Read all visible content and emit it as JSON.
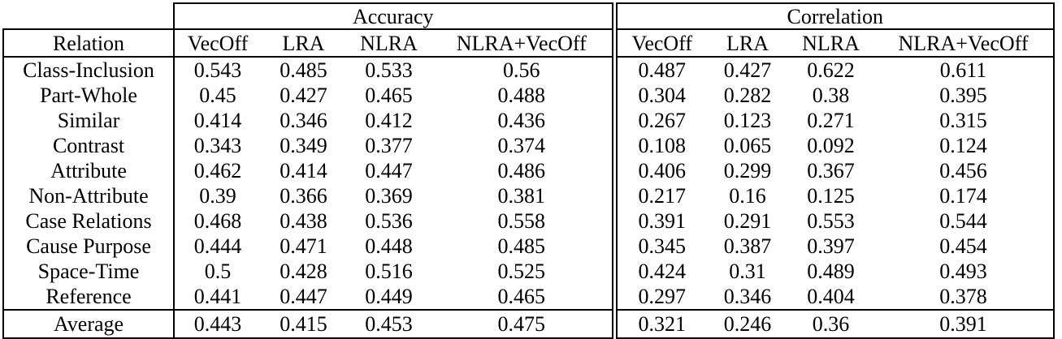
{
  "table": {
    "group_headers": [
      "Accuracy",
      "Correlation"
    ],
    "relation_header": "Relation",
    "column_headers": [
      "VecOff",
      "LRA",
      "NLRA",
      "NLRA+VecOff"
    ],
    "text_color": "#000000",
    "background_color": "#ffffff",
    "rows": [
      {
        "relation": "Class-Inclusion",
        "accuracy": [
          "0.543",
          "0.485",
          "0.533",
          "0.56"
        ],
        "accuracy_bold": [
          false,
          false,
          false,
          true
        ],
        "correlation": [
          "0.487",
          "0.427",
          "0.622",
          "0.611"
        ],
        "correlation_bold": [
          false,
          false,
          true,
          false
        ]
      },
      {
        "relation": "Part-Whole",
        "accuracy": [
          "0.45",
          "0.427",
          "0.465",
          "0.488"
        ],
        "accuracy_bold": [
          false,
          false,
          false,
          true
        ],
        "correlation": [
          "0.304",
          "0.282",
          "0.38",
          "0.395"
        ],
        "correlation_bold": [
          false,
          false,
          false,
          true
        ]
      },
      {
        "relation": "Similar",
        "accuracy": [
          "0.414",
          "0.346",
          "0.412",
          "0.436"
        ],
        "accuracy_bold": [
          false,
          false,
          false,
          true
        ],
        "correlation": [
          "0.267",
          "0.123",
          "0.271",
          "0.315"
        ],
        "correlation_bold": [
          false,
          false,
          false,
          true
        ]
      },
      {
        "relation": "Contrast",
        "accuracy": [
          "0.343",
          "0.349",
          "0.377",
          "0.374"
        ],
        "accuracy_bold": [
          false,
          false,
          true,
          false
        ],
        "correlation": [
          "0.108",
          "0.065",
          "0.092",
          "0.124"
        ],
        "correlation_bold": [
          false,
          false,
          false,
          true
        ]
      },
      {
        "relation": "Attribute",
        "accuracy": [
          "0.462",
          "0.414",
          "0.447",
          "0.486"
        ],
        "accuracy_bold": [
          false,
          false,
          false,
          true
        ],
        "correlation": [
          "0.406",
          "0.299",
          "0.367",
          "0.456"
        ],
        "correlation_bold": [
          false,
          false,
          false,
          true
        ]
      },
      {
        "relation": "Non-Attribute",
        "accuracy": [
          "0.39",
          "0.366",
          "0.369",
          "0.381"
        ],
        "accuracy_bold": [
          true,
          false,
          false,
          false
        ],
        "correlation": [
          "0.217",
          "0.16",
          "0.125",
          "0.174"
        ],
        "correlation_bold": [
          true,
          false,
          false,
          false
        ]
      },
      {
        "relation": "Case Relations",
        "accuracy": [
          "0.468",
          "0.438",
          "0.536",
          "0.558"
        ],
        "accuracy_bold": [
          false,
          false,
          false,
          true
        ],
        "correlation": [
          "0.391",
          "0.291",
          "0.553",
          "0.544"
        ],
        "correlation_bold": [
          false,
          false,
          true,
          false
        ]
      },
      {
        "relation": "Cause Purpose",
        "accuracy": [
          "0.444",
          "0.471",
          "0.448",
          "0.485"
        ],
        "accuracy_bold": [
          false,
          false,
          false,
          true
        ],
        "correlation": [
          "0.345",
          "0.387",
          "0.397",
          "0.454"
        ],
        "correlation_bold": [
          false,
          false,
          false,
          true
        ]
      },
      {
        "relation": "Space-Time",
        "accuracy": [
          "0.5",
          "0.428",
          "0.516",
          "0.525"
        ],
        "accuracy_bold": [
          false,
          false,
          false,
          true
        ],
        "correlation": [
          "0.424",
          "0.31",
          "0.489",
          "0.493"
        ],
        "correlation_bold": [
          false,
          false,
          false,
          true
        ]
      },
      {
        "relation": "Reference",
        "accuracy": [
          "0.441",
          "0.447",
          "0.449",
          "0.465"
        ],
        "accuracy_bold": [
          false,
          false,
          false,
          true
        ],
        "correlation": [
          "0.297",
          "0.346",
          "0.404",
          "0.378"
        ],
        "correlation_bold": [
          false,
          false,
          true,
          false
        ]
      }
    ],
    "average": {
      "relation": "Average",
      "accuracy": [
        "0.443",
        "0.415",
        "0.453",
        "0.475"
      ],
      "accuracy_bold": [
        false,
        false,
        false,
        true
      ],
      "correlation": [
        "0.321",
        "0.246",
        "0.36",
        "0.391"
      ],
      "correlation_bold": [
        false,
        false,
        false,
        true
      ]
    }
  }
}
